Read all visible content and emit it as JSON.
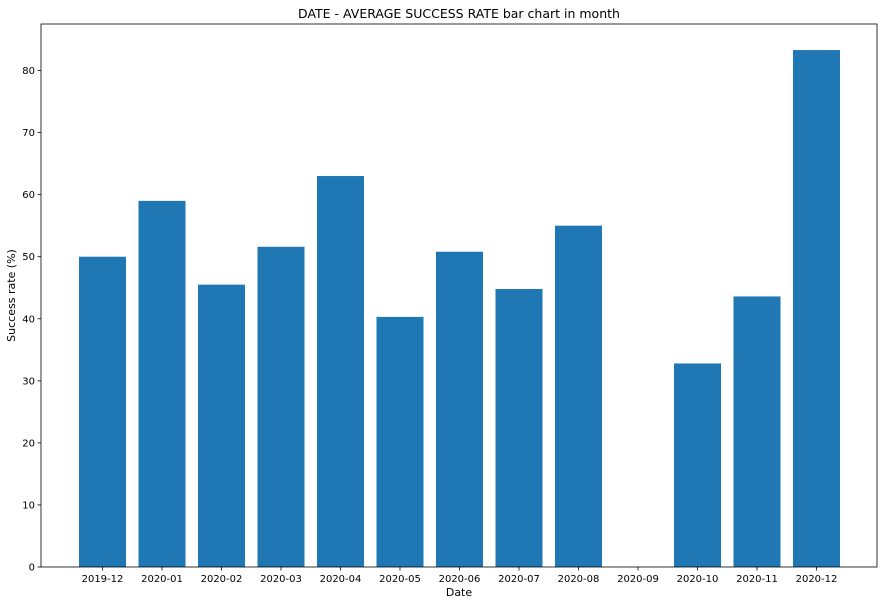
{
  "chart_data": {
    "type": "bar",
    "title": "DATE - AVERAGE SUCCESS RATE bar chart in month",
    "xlabel": "Date",
    "ylabel": "Success rate (%)",
    "categories": [
      "2019-12",
      "2020-01",
      "2020-02",
      "2020-03",
      "2020-04",
      "2020-05",
      "2020-06",
      "2020-07",
      "2020-08",
      "2020-09",
      "2020-10",
      "2020-11",
      "2020-12"
    ],
    "values": [
      50.0,
      59.0,
      45.5,
      51.6,
      63.0,
      40.3,
      50.8,
      44.8,
      55.0,
      0,
      32.8,
      43.6,
      83.3
    ],
    "ylim": [
      0,
      87.5
    ],
    "yticks": [
      0,
      10,
      20,
      30,
      40,
      50,
      60,
      70,
      80
    ],
    "bar_color": "#1f77b4",
    "grid": false,
    "legend": false
  }
}
